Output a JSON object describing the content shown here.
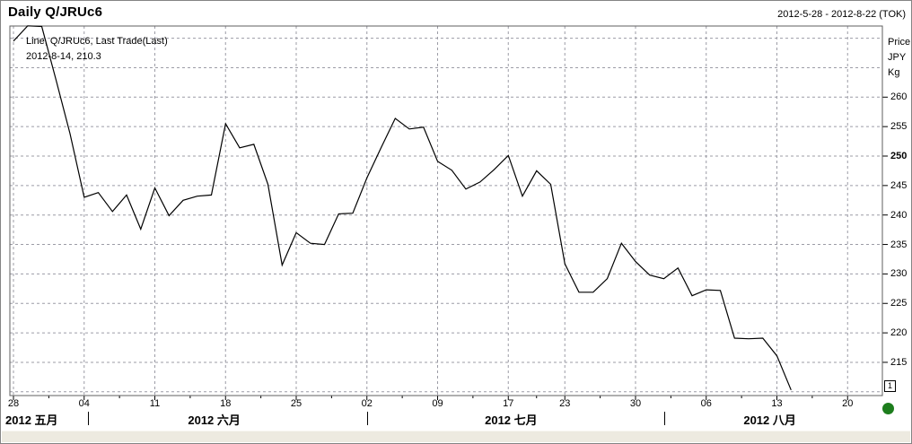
{
  "window": {
    "title": "Daily Q/JRUc6",
    "date_range": "2012-5-28 - 2012-8-22 (TOK)"
  },
  "legend": {
    "series_label": "Line, Q/JRUc6, Last Trade(Last)",
    "last_point_label": "2012-8-14, 210.3"
  },
  "y_axis": {
    "title_lines": [
      "Price",
      "JPY",
      "Kg"
    ],
    "tick_labels": [
      260,
      255,
      250,
      245,
      240,
      235,
      230,
      225,
      220,
      215
    ],
    "emphasized_tick": 250,
    "gridline_prices": [
      270,
      265,
      260,
      255,
      250,
      245,
      240,
      235,
      230,
      225,
      220,
      215,
      210
    ]
  },
  "x_axis": {
    "week_ticks": [
      {
        "label": "28",
        "day": 0
      },
      {
        "label": "04",
        "day": 5
      },
      {
        "label": "11",
        "day": 10
      },
      {
        "label": "18",
        "day": 15
      },
      {
        "label": "25",
        "day": 20
      },
      {
        "label": "02",
        "day": 25
      },
      {
        "label": "09",
        "day": 30
      },
      {
        "label": "17",
        "day": 35
      },
      {
        "label": "23",
        "day": 39
      },
      {
        "label": "30",
        "day": 44
      },
      {
        "label": "06",
        "day": 49
      },
      {
        "label": "13",
        "day": 54
      },
      {
        "label": "20",
        "day": 59
      }
    ],
    "month_labels": [
      {
        "label": "2012 五月",
        "align": "left",
        "center_day": 1.5
      },
      {
        "label": "2012 六月",
        "align": "center",
        "center_day": 14.2
      },
      {
        "label": "2012 七月",
        "align": "center",
        "center_day": 35.2
      },
      {
        "label": "2012 八月",
        "align": "center",
        "center_day": 53.5
      }
    ],
    "month_separator_days": [
      5.3,
      25.0,
      46.0
    ]
  },
  "status": {
    "page_marker": "1",
    "status_dot_color": "#1d7d1d"
  },
  "chart_data": {
    "type": "line",
    "title": "Daily Q/JRUc6",
    "series_name": "Q/JRUc6, Last Trade(Last)",
    "ylabel": "Price JPY Kg",
    "ylim": [
      209.4,
      272.1
    ],
    "grid": "dashed",
    "line_color": "#000000",
    "last_point": {
      "date": "2012-8-14",
      "value": 210.3
    },
    "dates": [
      "2012-05-28",
      "2012-05-29",
      "2012-05-30",
      "2012-05-31",
      "2012-06-01",
      "2012-06-04",
      "2012-06-05",
      "2012-06-06",
      "2012-06-07",
      "2012-06-08",
      "2012-06-11",
      "2012-06-12",
      "2012-06-13",
      "2012-06-14",
      "2012-06-15",
      "2012-06-18",
      "2012-06-19",
      "2012-06-20",
      "2012-06-21",
      "2012-06-22",
      "2012-06-25",
      "2012-06-26",
      "2012-06-27",
      "2012-06-28",
      "2012-06-29",
      "2012-07-02",
      "2012-07-03",
      "2012-07-04",
      "2012-07-05",
      "2012-07-06",
      "2012-07-09",
      "2012-07-10",
      "2012-07-11",
      "2012-07-12",
      "2012-07-13",
      "2012-07-17",
      "2012-07-18",
      "2012-07-19",
      "2012-07-20",
      "2012-07-23",
      "2012-07-24",
      "2012-07-25",
      "2012-07-26",
      "2012-07-27",
      "2012-07-30",
      "2012-07-31",
      "2012-08-01",
      "2012-08-02",
      "2012-08-03",
      "2012-08-06",
      "2012-08-07",
      "2012-08-08",
      "2012-08-09",
      "2012-08-10",
      "2012-08-13",
      "2012-08-14"
    ],
    "values": [
      269.5,
      272.1,
      272.0,
      263.0,
      253.8,
      243.0,
      243.8,
      240.6,
      243.4,
      237.6,
      244.6,
      239.9,
      242.5,
      243.2,
      243.4,
      255.5,
      251.4,
      252.0,
      245.2,
      231.5,
      237.0,
      235.2,
      235.0,
      240.2,
      240.3,
      246.3,
      251.4,
      256.4,
      254.6,
      254.9,
      249.1,
      247.6,
      244.4,
      245.6,
      247.7,
      250.1,
      243.2,
      247.5,
      245.2,
      231.7,
      226.9,
      226.9,
      229.2,
      235.2,
      232.1,
      229.8,
      229.2,
      231.0,
      226.3,
      227.3,
      227.2,
      219.1,
      219.0,
      219.1,
      216.1,
      210.3
    ]
  }
}
